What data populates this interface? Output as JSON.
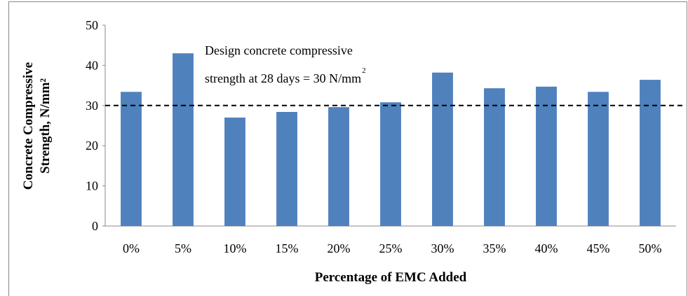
{
  "chart_data": {
    "type": "bar",
    "categories": [
      "0%",
      "5%",
      "10%",
      "15%",
      "20%",
      "25%",
      "30%",
      "35%",
      "40%",
      "45%",
      "50%"
    ],
    "values": [
      33.4,
      43.0,
      27.0,
      28.4,
      29.6,
      30.8,
      38.2,
      34.3,
      34.7,
      33.4,
      36.4
    ],
    "color": "#4f81bd",
    "ylim": [
      0,
      50
    ],
    "yticks": [
      0,
      10,
      20,
      30,
      40,
      50
    ],
    "x_label": "Percentage of EMC Added",
    "y_label": [
      "Concrete Compressive",
      "Strength, N/mm²"
    ],
    "reference_line": {
      "value": 30,
      "color": "#000000",
      "dashed": true
    },
    "annotation": {
      "lines": [
        "Design concrete compressive",
        "strength at 28 days = 30 N/mm"
      ],
      "superscript": "2"
    }
  }
}
